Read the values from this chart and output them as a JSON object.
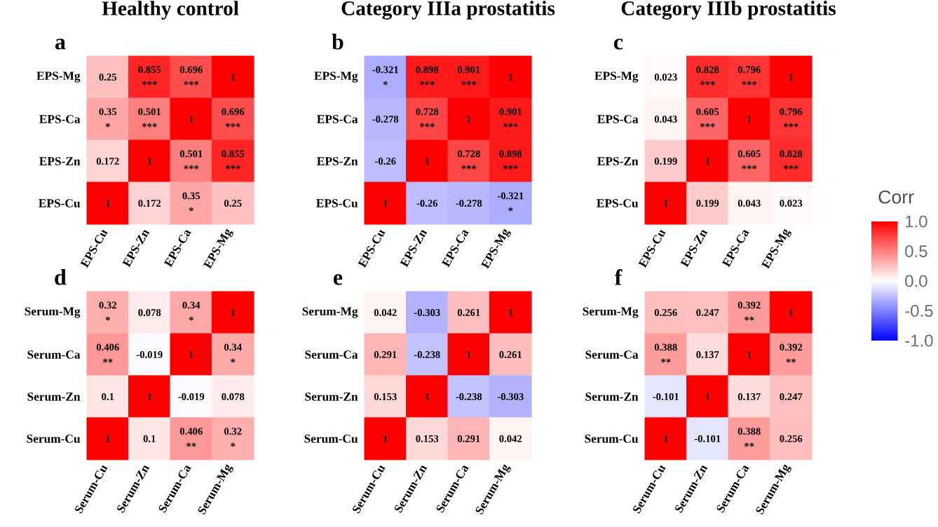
{
  "chart_data": [
    {
      "type": "heatmap",
      "title": "Healthy control",
      "annotations": [
        "a"
      ],
      "categories": [
        "EPS-Cu",
        "EPS-Zn",
        "EPS-Ca",
        "EPS-Mg"
      ],
      "y_categories": [
        "EPS-Mg",
        "EPS-Ca",
        "EPS-Zn",
        "EPS-Cu"
      ],
      "cells": [
        [
          0.25,
          0.855,
          0.696,
          1
        ],
        [
          0.35,
          0.501,
          1,
          0.696
        ],
        [
          0.172,
          1,
          0.501,
          0.855
        ],
        [
          1,
          0.172,
          0.35,
          0.25
        ]
      ],
      "cell_labels": [
        [
          "0.25",
          "0.855 ***",
          "0.696 ***",
          "1"
        ],
        [
          "0.35 *",
          "0.501 ***",
          "1",
          "0.696 ***"
        ],
        [
          "0.172",
          "1",
          "0.501 ***",
          "0.855 ***"
        ],
        [
          "1",
          "0.172",
          "0.35 *",
          "0.25"
        ]
      ]
    },
    {
      "type": "heatmap",
      "title": "Category IIIa prostatitis",
      "annotations": [
        "b"
      ],
      "categories": [
        "EPS-Cu",
        "EPS-Zn",
        "EPS-Ca",
        "EPS-Mg"
      ],
      "y_categories": [
        "EPS-Mg",
        "EPS-Ca",
        "EPS-Zn",
        "EPS-Cu"
      ],
      "cells": [
        [
          -0.321,
          0.898,
          0.901,
          1
        ],
        [
          -0.278,
          0.728,
          1,
          0.901
        ],
        [
          -0.26,
          1,
          0.728,
          0.898
        ],
        [
          1,
          -0.26,
          -0.278,
          -0.321
        ]
      ],
      "cell_labels": [
        [
          "-0.321 *",
          "0.898 ***",
          "0.901 ***",
          "1"
        ],
        [
          "-0.278",
          "0.728 ***",
          "1",
          "0.901 ***"
        ],
        [
          "-0.26",
          "1",
          "0.728 ***",
          "0.898 ***"
        ],
        [
          "1",
          "-0.26",
          "-0.278",
          "-0.321 *"
        ]
      ]
    },
    {
      "type": "heatmap",
      "title": "Category IIIb prostatitis",
      "annotations": [
        "c"
      ],
      "categories": [
        "EPS-Cu",
        "EPS-Zn",
        "EPS-Ca",
        "EPS-Mg"
      ],
      "y_categories": [
        "EPS-Mg",
        "EPS-Ca",
        "EPS-Zn",
        "EPS-Cu"
      ],
      "cells": [
        [
          0.023,
          0.828,
          0.796,
          1
        ],
        [
          0.043,
          0.605,
          1,
          0.796
        ],
        [
          0.199,
          1,
          0.605,
          0.828
        ],
        [
          1,
          0.199,
          0.043,
          0.023
        ]
      ],
      "cell_labels": [
        [
          "0.023",
          "0.828 ***",
          "0.796 ***",
          "1"
        ],
        [
          "0.043",
          "0.605 ***",
          "1",
          "0.796 ***"
        ],
        [
          "0.199",
          "1",
          "0.605 ***",
          "0.828 ***"
        ],
        [
          "1",
          "0.199",
          "0.043",
          "0.023"
        ]
      ],
      "clabel": "Corr",
      "clim": [
        -1,
        1
      ],
      "cticks": [
        {
          "value": -1,
          "label": "-1.0"
        },
        {
          "value": -0.5,
          "label": "-0.5"
        },
        {
          "value": 0,
          "label": "0.0"
        },
        {
          "value": 0.5,
          "label": "0.5"
        },
        {
          "value": 1,
          "label": "1.0"
        }
      ]
    },
    {
      "type": "heatmap",
      "annotations": [
        "d"
      ],
      "categories": [
        "Serum-Cu",
        "Serum-Zn",
        "Serum-Ca",
        "Serum-Mg"
      ],
      "y_categories": [
        "Serum-Mg",
        "Serum-Ca",
        "Serum-Zn",
        "Serum-Cu"
      ],
      "cells": [
        [
          0.32,
          0.078,
          0.34,
          1
        ],
        [
          0.406,
          -0.019,
          1,
          0.34
        ],
        [
          0.1,
          1,
          -0.019,
          0.078
        ],
        [
          1,
          0.1,
          0.406,
          0.32
        ]
      ],
      "cell_labels": [
        [
          "0.32 *",
          "0.078",
          "0.34 *",
          "1"
        ],
        [
          "0.406 **",
          "-0.019",
          "1",
          "0.34 *"
        ],
        [
          "0.1",
          "1",
          "-0.019",
          "0.078"
        ],
        [
          "1",
          "0.1",
          "0.406 **",
          "0.32 *"
        ]
      ]
    },
    {
      "type": "heatmap",
      "annotations": [
        "e"
      ],
      "categories": [
        "Serum-Cu",
        "Serum-Zn",
        "Serum-Ca",
        "Serum-Mg"
      ],
      "y_categories": [
        "Serum-Mg",
        "Serum-Ca",
        "Serum-Zn",
        "Serum-Cu"
      ],
      "cells": [
        [
          0.042,
          -0.303,
          0.261,
          1
        ],
        [
          0.291,
          -0.238,
          1,
          0.261
        ],
        [
          0.153,
          1,
          -0.238,
          -0.303
        ],
        [
          1,
          0.153,
          0.291,
          0.042
        ]
      ],
      "cell_labels": [
        [
          "0.042",
          "-0.303",
          "0.261",
          "1"
        ],
        [
          "0.291",
          "-0.238",
          "1",
          "0.261"
        ],
        [
          "0.153",
          "1",
          "-0.238",
          "-0.303"
        ],
        [
          "1",
          "0.153",
          "0.291",
          "0.042"
        ]
      ]
    },
    {
      "type": "heatmap",
      "annotations": [
        "f"
      ],
      "categories": [
        "Serum-Cu",
        "Serum-Zn",
        "Serum-Ca",
        "Serum-Mg"
      ],
      "y_categories": [
        "Serum-Mg",
        "Serum-Ca",
        "Serum-Zn",
        "Serum-Cu"
      ],
      "cells": [
        [
          0.256,
          0.247,
          0.392,
          1
        ],
        [
          0.388,
          0.137,
          1,
          0.392
        ],
        [
          -0.101,
          1,
          0.137,
          0.247
        ],
        [
          1,
          -0.101,
          0.388,
          0.256
        ]
      ],
      "cell_labels": [
        [
          "0.256",
          "0.247",
          "0.392 **",
          "1"
        ],
        [
          "0.388 **",
          "0.137",
          "1",
          "0.392 **"
        ],
        [
          "-0.101",
          "1",
          "0.137",
          "0.247"
        ],
        [
          "1",
          "-0.101",
          "0.388 **",
          "0.256"
        ]
      ]
    }
  ]
}
